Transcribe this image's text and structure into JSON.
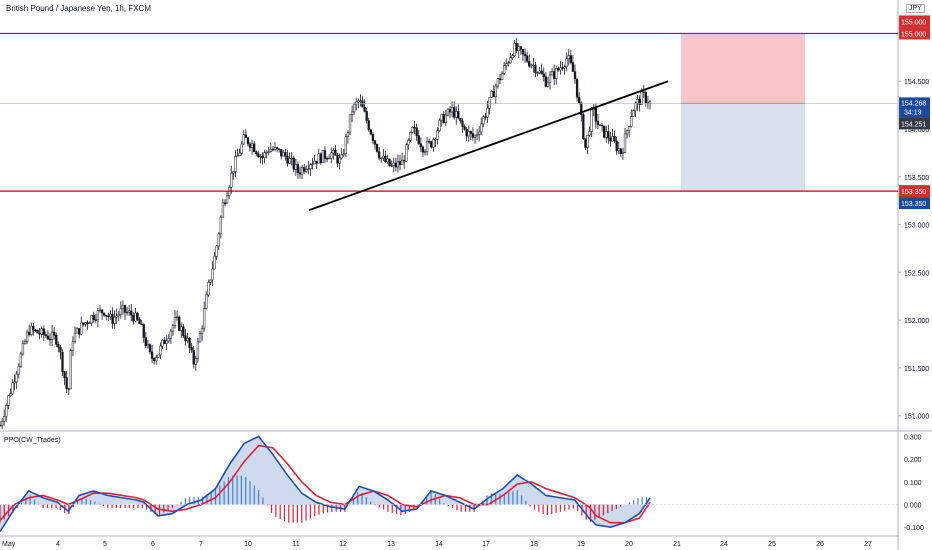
{
  "header": {
    "symbol_title": "British Pound / Japanese Yen, 1h, FXCM",
    "currency_badge": "JPY"
  },
  "indicator": {
    "label": "PPO(CW_Trades)"
  },
  "price_axis": {
    "ticks": [
      "155.000",
      "154.500",
      "154.000",
      "153.500",
      "153.000",
      "152.500",
      "152.000",
      "151.500",
      "151.000"
    ],
    "tick_values": [
      155.0,
      154.5,
      154.0,
      153.5,
      153.0,
      152.5,
      152.0,
      151.5,
      151.0
    ]
  },
  "price_tags": {
    "top_red": "155.000",
    "top_red_hidden": "155.000",
    "current": "154.268",
    "countdown": "34:19",
    "last_close": "154.251",
    "stop_red": "153.350",
    "stop_blue": "153.350"
  },
  "ppo_axis": {
    "ticks": [
      "0.300",
      "0.200",
      "0.100",
      "0.000",
      "-0.100"
    ],
    "tick_values": [
      0.3,
      0.2,
      0.1,
      0.0,
      -0.1
    ]
  },
  "time_axis": {
    "labels": [
      "May",
      "4",
      "5",
      "6",
      "7",
      "10",
      "11",
      "12",
      "13",
      "14",
      "17",
      "18",
      "19",
      "20",
      "21",
      "24",
      "25",
      "26",
      "27"
    ]
  },
  "colors": {
    "up": "#131722",
    "down": "#131722",
    "hline": "#cc0000",
    "trendline": "#000000",
    "risk_fill": "#f8c6c6",
    "reward_fill": "#d8e0ee",
    "tag_red": "#d32f2f",
    "tag_blue": "#1a4a9a",
    "tag_dark": "#363a45",
    "ppo_fast": "#1e4fb0",
    "ppo_slow": "#e0203a",
    "ppo_fill_up": "#c5d3ea",
    "ppo_fill_down": "#f8c6cc",
    "hist_pos": "#4a7fd4",
    "hist_neg": "#e0203a"
  },
  "chart_data": {
    "type": "line",
    "title": "British Pound / Japanese Yen, 1h, FXCM",
    "ylim": [
      150.85,
      155.35
    ],
    "levels": {
      "resistance": 155.0,
      "support": 153.35,
      "position_entry": 154.268,
      "position_target": 153.35,
      "position_stop": 155.0
    },
    "trendline": {
      "from": {
        "x": 11.6,
        "y": 153.15
      },
      "to": {
        "x": 21.6,
        "y": 154.5
      }
    },
    "x_range": [
      3.0,
      28.0
    ],
    "price_path_x": [
      3.0,
      3.4,
      3.8,
      4.2,
      4.6,
      4.9,
      5.0,
      5.3,
      5.6,
      5.9,
      6.1,
      6.4,
      6.7,
      6.9,
      7.2,
      7.4,
      7.6,
      7.9,
      8.2,
      8.4,
      8.6,
      8.8,
      9.0,
      9.2,
      9.5,
      9.8,
      10.0,
      10.3,
      10.5,
      10.8,
      11.0,
      11.3,
      11.6,
      11.9,
      12.2,
      12.5,
      12.8,
      13.0,
      13.3,
      13.6,
      13.9,
      14.2,
      14.5,
      14.8,
      15.0,
      15.3,
      15.6,
      15.9,
      16.2,
      16.5,
      16.8,
      17.0,
      17.3,
      17.6,
      17.9,
      18.2,
      18.5,
      18.8,
      19.0,
      19.3,
      19.5,
      19.7,
      20.0,
      20.3,
      20.6,
      20.9,
      21.1
    ],
    "price_path_y": [
      150.9,
      151.4,
      151.9,
      151.85,
      151.8,
      151.2,
      151.8,
      151.95,
      152.05,
      152.1,
      152.0,
      152.1,
      152.05,
      151.95,
      151.6,
      151.65,
      151.8,
      152.0,
      151.8,
      151.55,
      151.9,
      152.35,
      152.7,
      153.2,
      153.6,
      153.9,
      153.85,
      153.7,
      153.8,
      153.75,
      153.7,
      153.55,
      153.65,
      153.7,
      153.75,
      153.65,
      154.2,
      154.3,
      154.0,
      153.7,
      153.6,
      153.65,
      154.0,
      153.8,
      153.85,
      154.1,
      154.2,
      154.0,
      153.9,
      154.15,
      154.45,
      154.6,
      154.85,
      154.75,
      154.65,
      154.5,
      154.6,
      154.75,
      154.55,
      153.8,
      154.2,
      154.0,
      153.9,
      153.75,
      154.2,
      154.35,
      154.27
    ],
    "ppo_path_x": [
      3.0,
      3.4,
      3.8,
      4.2,
      4.6,
      4.9,
      5.2,
      5.6,
      6.0,
      6.4,
      6.8,
      7.0,
      7.4,
      7.8,
      8.2,
      8.6,
      9.0,
      9.4,
      9.8,
      10.2,
      10.6,
      11.0,
      11.4,
      11.8,
      12.2,
      12.6,
      13.0,
      13.4,
      13.8,
      14.2,
      14.6,
      15.0,
      15.4,
      15.8,
      16.2,
      16.6,
      17.0,
      17.4,
      17.8,
      18.2,
      18.6,
      19.0,
      19.4,
      19.6,
      20.0,
      20.4,
      20.8,
      21.1
    ],
    "ppo_fast": [
      -0.12,
      -0.02,
      0.06,
      0.03,
      0.01,
      -0.03,
      0.04,
      0.06,
      0.04,
      0.03,
      0.02,
      0.01,
      -0.05,
      -0.04,
      0.0,
      0.02,
      0.07,
      0.18,
      0.27,
      0.3,
      0.22,
      0.13,
      0.05,
      0.01,
      -0.01,
      -0.02,
      0.08,
      0.06,
      0.02,
      -0.03,
      -0.02,
      0.06,
      0.04,
      0.01,
      -0.02,
      0.03,
      0.07,
      0.13,
      0.09,
      0.04,
      0.03,
      0.02,
      -0.06,
      -0.09,
      -0.1,
      -0.08,
      -0.04,
      0.03
    ],
    "ppo_slow": [
      -0.07,
      0.0,
      0.03,
      0.04,
      0.02,
      0.0,
      0.02,
      0.05,
      0.05,
      0.04,
      0.03,
      0.02,
      -0.02,
      -0.03,
      -0.02,
      0.0,
      0.03,
      0.1,
      0.19,
      0.26,
      0.25,
      0.18,
      0.1,
      0.04,
      0.01,
      0.0,
      0.04,
      0.06,
      0.04,
      0.0,
      -0.01,
      0.02,
      0.04,
      0.03,
      0.0,
      0.0,
      0.04,
      0.09,
      0.1,
      0.07,
      0.05,
      0.03,
      -0.01,
      -0.05,
      -0.08,
      -0.08,
      -0.06,
      0.01
    ]
  }
}
